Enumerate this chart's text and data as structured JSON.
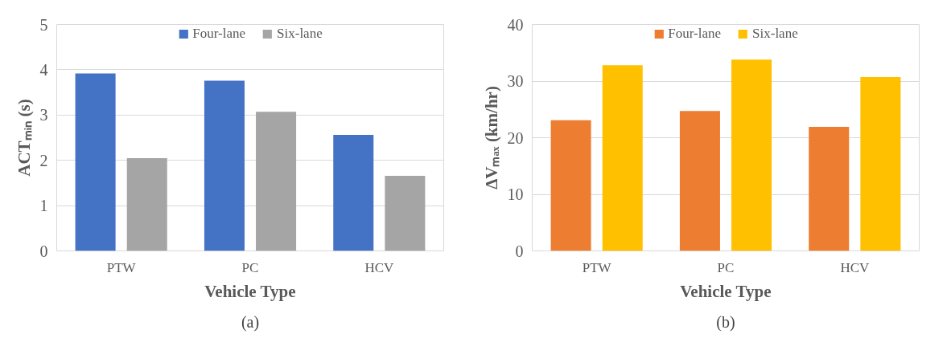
{
  "chart_data": [
    {
      "type": "bar",
      "categories": [
        "PTW",
        "PC",
        "HCV"
      ],
      "xlabel": "Vehicle Type",
      "ylabel": "ACTₘᵢₙ (s)",
      "series": [
        {
          "name": "Four-lane",
          "color": "#4472c4",
          "values": [
            3.92,
            3.76,
            2.56
          ]
        },
        {
          "name": "Six-lane",
          "color": "#a5a5a5",
          "values": [
            2.05,
            3.07,
            1.66
          ]
        }
      ],
      "ylim": [
        0,
        5
      ],
      "yticks": [
        0,
        1,
        2,
        3,
        4,
        5
      ],
      "grid": "y",
      "legend": "top",
      "annotations": [
        "(a)"
      ]
    },
    {
      "type": "bar",
      "categories": [
        "PTW",
        "PC",
        "HCV"
      ],
      "xlabel": "Vehicle Type",
      "ylabel": "ΔVₘₐₓ (km/hr)",
      "series": [
        {
          "name": "Four-lane",
          "color": "#ed7d31",
          "values": [
            23.1,
            24.7,
            21.9
          ]
        },
        {
          "name": "Six-lane",
          "color": "#ffc000",
          "values": [
            32.8,
            33.8,
            30.7
          ]
        }
      ],
      "ylim": [
        0,
        40
      ],
      "yticks": [
        0,
        10,
        20,
        30,
        40
      ],
      "grid": "y",
      "legend": "top",
      "annotations": [
        "(b)"
      ]
    }
  ]
}
